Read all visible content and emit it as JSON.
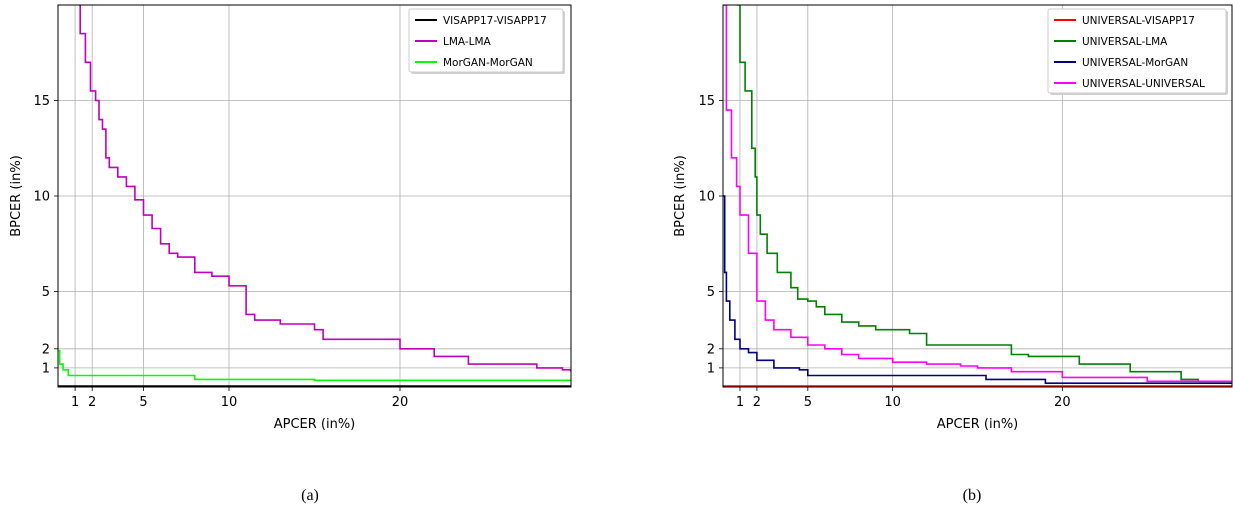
{
  "chart_data": [
    {
      "type": "line",
      "caption": "(a)",
      "xlabel": "APCER (in%)",
      "ylabel": "BPCER (in%)",
      "xlim": [
        0,
        30
      ],
      "ylim": [
        0,
        20
      ],
      "xticks": [
        1,
        2,
        5,
        10,
        20
      ],
      "yticks": [
        1,
        2,
        5,
        10,
        15
      ],
      "grid": true,
      "legend": "top-right",
      "series": [
        {
          "name": "VISAPP17-VISAPP17",
          "color": "#000000",
          "points": [
            [
              0,
              0.05
            ],
            [
              30,
              0.05
            ]
          ]
        },
        {
          "name": "LMA-LMA",
          "color": "#bf00bf",
          "points": [
            [
              1.2,
              20
            ],
            [
              1.3,
              18.5
            ],
            [
              1.6,
              17
            ],
            [
              1.9,
              15.5
            ],
            [
              2.2,
              15
            ],
            [
              2.4,
              14
            ],
            [
              2.6,
              13.5
            ],
            [
              2.8,
              12
            ],
            [
              3,
              11.5
            ],
            [
              3.5,
              11
            ],
            [
              4,
              10.5
            ],
            [
              4.5,
              9.8
            ],
            [
              5,
              9
            ],
            [
              5.5,
              8.3
            ],
            [
              6,
              7.5
            ],
            [
              6.5,
              7
            ],
            [
              7,
              6.8
            ],
            [
              8,
              6
            ],
            [
              9,
              5.8
            ],
            [
              10,
              5.3
            ],
            [
              11,
              3.8
            ],
            [
              11.5,
              3.5
            ],
            [
              13,
              3.3
            ],
            [
              15,
              3
            ],
            [
              15.5,
              2.5
            ],
            [
              19,
              2.5
            ],
            [
              20,
              2
            ],
            [
              22,
              1.6
            ],
            [
              24,
              1.2
            ],
            [
              28,
              1
            ],
            [
              29.5,
              0.9
            ],
            [
              30,
              0.8
            ]
          ]
        },
        {
          "name": "MorGAN-MorGAN",
          "color": "#00ff00",
          "points": [
            [
              0,
              1.9
            ],
            [
              0.1,
              1.2
            ],
            [
              0.3,
              0.9
            ],
            [
              0.6,
              0.6
            ],
            [
              5,
              0.6
            ],
            [
              8,
              0.4
            ],
            [
              15,
              0.35
            ],
            [
              30,
              0.3
            ]
          ]
        }
      ]
    },
    {
      "type": "line",
      "caption": "(b)",
      "xlabel": "APCER (in%)",
      "ylabel": "BPCER (in%)",
      "xlim": [
        0,
        30
      ],
      "ylim": [
        0,
        20
      ],
      "xticks": [
        1,
        2,
        5,
        10,
        20
      ],
      "yticks": [
        1,
        2,
        5,
        10,
        15
      ],
      "grid": true,
      "legend": "top-right",
      "series": [
        {
          "name": "UNIVERSAL-VISAPP17",
          "color": "#ff0000",
          "points": [
            [
              0,
              0.05
            ],
            [
              30,
              0.05
            ]
          ]
        },
        {
          "name": "UNIVERSAL-LMA",
          "color": "#008000",
          "points": [
            [
              0.8,
              20
            ],
            [
              1,
              17
            ],
            [
              1.3,
              15.5
            ],
            [
              1.7,
              12.5
            ],
            [
              1.9,
              11
            ],
            [
              2,
              9
            ],
            [
              2.2,
              8
            ],
            [
              2.6,
              7
            ],
            [
              3.2,
              6
            ],
            [
              4,
              5.2
            ],
            [
              4.4,
              4.6
            ],
            [
              5,
              4.5
            ],
            [
              5.5,
              4.2
            ],
            [
              6,
              3.8
            ],
            [
              7,
              3.4
            ],
            [
              8,
              3.2
            ],
            [
              9,
              3
            ],
            [
              11,
              2.8
            ],
            [
              12,
              2.2
            ],
            [
              16,
              2.2
            ],
            [
              17,
              1.7
            ],
            [
              18,
              1.6
            ],
            [
              20,
              1.6
            ],
            [
              21,
              1.2
            ],
            [
              24,
              0.8
            ],
            [
              27,
              0.4
            ],
            [
              28,
              0.3
            ],
            [
              30,
              0.3
            ]
          ]
        },
        {
          "name": "UNIVERSAL-MorGAN",
          "color": "#00007f",
          "points": [
            [
              0,
              10
            ],
            [
              0.1,
              6
            ],
            [
              0.2,
              4.5
            ],
            [
              0.4,
              3.5
            ],
            [
              0.7,
              2.5
            ],
            [
              1,
              2
            ],
            [
              1.5,
              1.8
            ],
            [
              2,
              1.4
            ],
            [
              3,
              1
            ],
            [
              4.5,
              0.9
            ],
            [
              5,
              0.6
            ],
            [
              15,
              0.6
            ],
            [
              15.5,
              0.4
            ],
            [
              19,
              0.2
            ],
            [
              30,
              0.2
            ]
          ]
        },
        {
          "name": "UNIVERSAL-UNIVERSAL",
          "color": "#ff00ff",
          "points": [
            [
              0,
              20
            ],
            [
              0.2,
              14.5
            ],
            [
              0.5,
              12
            ],
            [
              0.8,
              10.5
            ],
            [
              1,
              9
            ],
            [
              1.5,
              7
            ],
            [
              2,
              4.5
            ],
            [
              2.5,
              3.5
            ],
            [
              3,
              3
            ],
            [
              4,
              2.6
            ],
            [
              5,
              2.2
            ],
            [
              6,
              2
            ],
            [
              7,
              1.7
            ],
            [
              8,
              1.5
            ],
            [
              9,
              1.5
            ],
            [
              10,
              1.3
            ],
            [
              12,
              1.2
            ],
            [
              14,
              1.1
            ],
            [
              15,
              1
            ],
            [
              17,
              0.8
            ],
            [
              20,
              0.5
            ],
            [
              25,
              0.3
            ],
            [
              30,
              0.2
            ]
          ]
        }
      ]
    }
  ]
}
